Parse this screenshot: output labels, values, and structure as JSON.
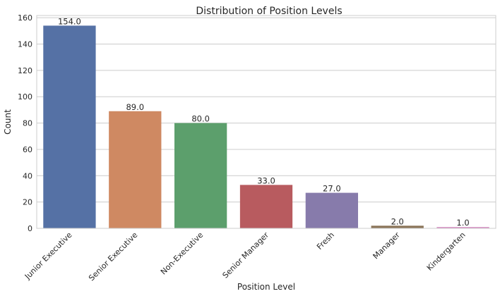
{
  "chart_data": {
    "type": "bar",
    "title": "Distribution of Position Levels",
    "xlabel": "Position Level",
    "ylabel": "Count",
    "categories": [
      "Junior Executive",
      "Senior Executive",
      "Non-Executive",
      "Senior Manager",
      "Fresh",
      "Manager",
      "Kindergarten"
    ],
    "values": [
      154,
      89,
      80,
      33,
      27,
      2,
      1
    ],
    "value_labels": [
      "154.0",
      "89.0",
      "80.0",
      "33.0",
      "27.0",
      "2.0",
      "1.0"
    ],
    "colors": [
      "#5571a5",
      "#cf8962",
      "#5c9f6c",
      "#b85b5f",
      "#877bab",
      "#8b7559",
      "#d68ec3"
    ],
    "yticks": [
      0,
      20,
      40,
      60,
      80,
      100,
      120,
      140,
      160
    ],
    "ylim": [
      0,
      161.7
    ],
    "grid": "horizontal"
  }
}
